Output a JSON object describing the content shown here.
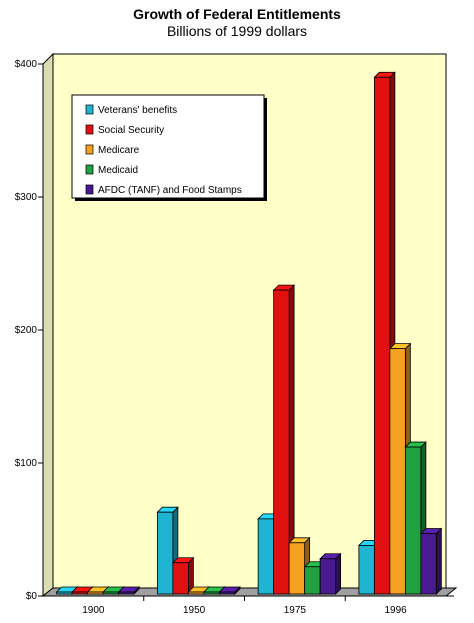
{
  "chart_data": {
    "type": "bar",
    "title": "Growth of Federal Entitlements",
    "subtitle": "Billions of 1999 dollars",
    "categories": [
      "1900",
      "1950",
      "1975",
      "1996"
    ],
    "series": [
      {
        "name": "Veterans' benefits",
        "color": "#1eb4d2",
        "values": [
          2,
          63,
          58,
          38
        ]
      },
      {
        "name": "Social Security",
        "color": "#e01010",
        "values": [
          0,
          25,
          230,
          390
        ]
      },
      {
        "name": "Medicare",
        "color": "#f5a020",
        "values": [
          0,
          0,
          40,
          186
        ]
      },
      {
        "name": "Medicaid",
        "color": "#20a040",
        "values": [
          0,
          0,
          22,
          112
        ]
      },
      {
        "name": "AFDC (TANF) and Food Stamps",
        "color": "#4a1a90",
        "values": [
          0,
          3,
          28,
          47
        ]
      }
    ],
    "y_ticks": [
      "$0",
      "$100",
      "$200",
      "$300",
      "$400"
    ],
    "ylim": [
      0,
      400
    ],
    "legend": "top-left",
    "grid": false,
    "plot_background": "#ffffc8"
  }
}
